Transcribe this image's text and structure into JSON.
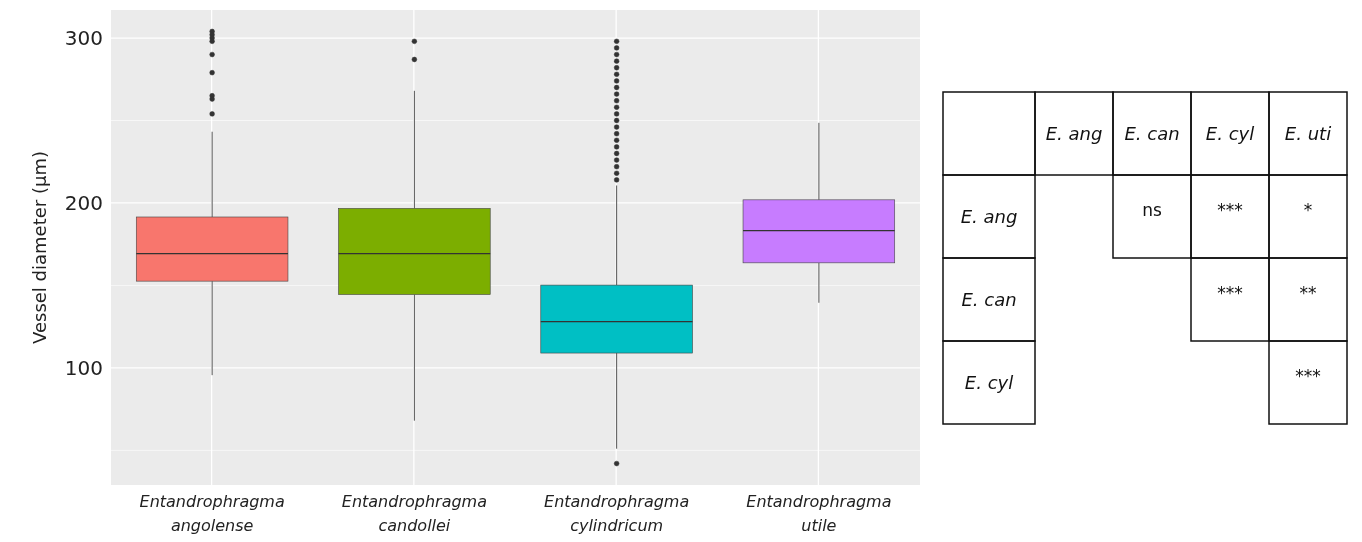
{
  "chart_data": [
    {
      "type": "box",
      "ylabel": "Vessel diameter (µm)",
      "categories": [
        "Entandrophragma angolense",
        "Entandrophragma candollei",
        "Entandrophragma cylindricum",
        "Entandrophragma utile"
      ],
      "colors": [
        "#f8766d",
        "#7cae00",
        "#00bfc4",
        "#c77cff"
      ],
      "boxes": [
        {
          "low": 95.6,
          "q1": 152.6,
          "median": 169.3,
          "q3": 191.5,
          "high": 243.2,
          "outliers": [
            304,
            302,
            300,
            298,
            290,
            279,
            265,
            263,
            254
          ]
        },
        {
          "low": 68,
          "q1": 144.5,
          "median": 169.3,
          "q3": 196.7,
          "high": 268,
          "outliers": [
            298,
            287
          ]
        },
        {
          "low": 51,
          "q1": 109,
          "median": 128,
          "q3": 150.2,
          "high": 210.6,
          "outliers": [
            42,
            214,
            218,
            222,
            226,
            230,
            234,
            238,
            242,
            246,
            250,
            254,
            258,
            262,
            266,
            270,
            274,
            278,
            282,
            286,
            290,
            294,
            298
          ]
        },
        {
          "low": 139.5,
          "q1": 163.7,
          "median": 183.2,
          "q3": 201.9,
          "high": 248.6
        }
      ],
      "ylim": [
        29,
        317
      ],
      "yticks": [
        100,
        200,
        300
      ],
      "grid": true
    },
    {
      "type": "other",
      "categories": [
        "E. ang",
        "E. can",
        "E. cyl",
        "E. uti"
      ],
      "y_categories": [
        "E. ang",
        "E. can",
        "E. cyl"
      ],
      "cell_labels": [
        [
          null,
          "ns",
          "***",
          "*"
        ],
        [
          null,
          null,
          "***",
          "**"
        ],
        [
          null,
          null,
          null,
          "***"
        ]
      ]
    }
  ]
}
